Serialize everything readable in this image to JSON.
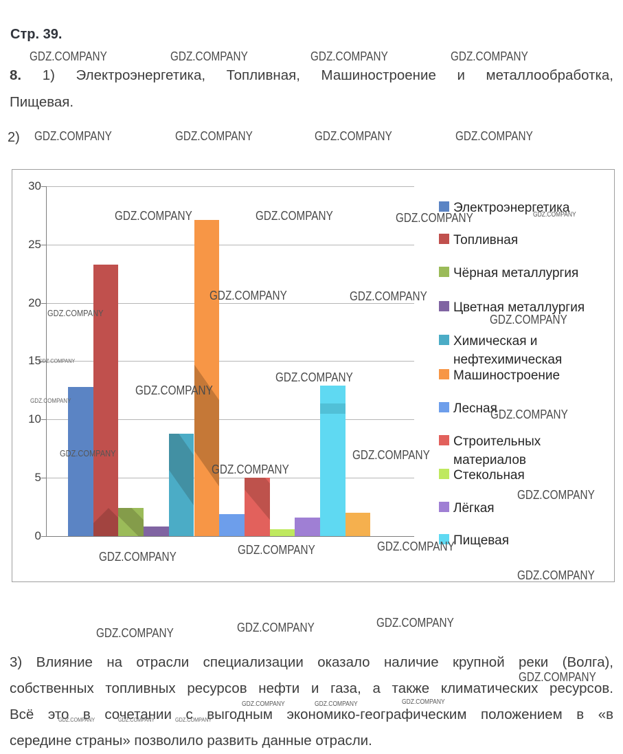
{
  "page_label": "Стр. 39.",
  "watermark": "GDZ.COMPANY",
  "task8": {
    "number": "8.",
    "part1_line1": "1)  Электроэнергетика,  Топливная,  Машиностроение  и  металлообработка,",
    "part1_line2": "Пищевая.",
    "part2_label": "2)"
  },
  "task3": {
    "line1": "3) Влияние на отрасли специализации оказало наличие крупной реки (Волга),",
    "line2": "собственных топливных ресурсов нефти и газа, а также климатических ресурсов.",
    "line3": "Всё это в сочетании с выгодным экономико-географическим положением в «в",
    "line4": "середине страны» позволило развить данные отрасли."
  },
  "chart_data": {
    "type": "bar",
    "title": "",
    "xlabel": "",
    "ylabel": "",
    "ylim": [
      0,
      30
    ],
    "grid": true,
    "legend_position": "right",
    "yticks": [
      "30",
      "25",
      "20",
      "15",
      "10",
      "5",
      "0"
    ],
    "points": [
      {
        "label": "Электроэнергетика",
        "value": 12.8,
        "color": "#5B84C4"
      },
      {
        "label": "Топливная",
        "value": 23.3,
        "color": "#C0504D"
      },
      {
        "label": "Чёрная металлургия",
        "value": 2.4,
        "color": "#9BBB59"
      },
      {
        "label": "Цветная металлургия",
        "value": 0.8,
        "color": "#8064A2"
      },
      {
        "label": "Химическая и нефтехимическая",
        "value": 8.8,
        "color": "#4BACC6"
      },
      {
        "label": "Машиностроение",
        "value": 27.1,
        "color": "#F79646"
      },
      {
        "label": "Лесная",
        "value": 1.9,
        "color": "#6D9EEB"
      },
      {
        "label": "Строительных материалов",
        "value": 5.0,
        "color": "#E2615C"
      },
      {
        "label": "Стекольная",
        "value": 0.6,
        "color": "#BFE95F"
      },
      {
        "label": "Лёгкая",
        "value": 1.6,
        "color": "#9F7FD4"
      },
      {
        "label": "Пищевая",
        "value": 12.9,
        "color": "#5FD9F2"
      },
      {
        "label": "",
        "value": 2.0,
        "color": "#F5B04E"
      }
    ],
    "legend": [
      {
        "label": "Электроэнергетика",
        "color": "#5B84C4"
      },
      {
        "label": "Топливная",
        "color": "#C0504D"
      },
      {
        "label": "Чёрная металлургия",
        "color": "#9BBB59"
      },
      {
        "label": "Цветная металлургия",
        "color": "#8064A2"
      },
      {
        "label": "Химическая и\nнефтехимическая",
        "color": "#4BACC6"
      },
      {
        "label": "Машиностроение",
        "color": "#F79646"
      },
      {
        "label": "Лесная",
        "color": "#6D9EEB"
      },
      {
        "label": "Строительных\nматериалов",
        "color": "#E2615C"
      },
      {
        "label": "Стекольная",
        "color": "#BFE95F"
      },
      {
        "label": "Лёгкая",
        "color": "#9F7FD4"
      },
      {
        "label": "Пищевая",
        "color": "#5FD9F2"
      }
    ]
  }
}
